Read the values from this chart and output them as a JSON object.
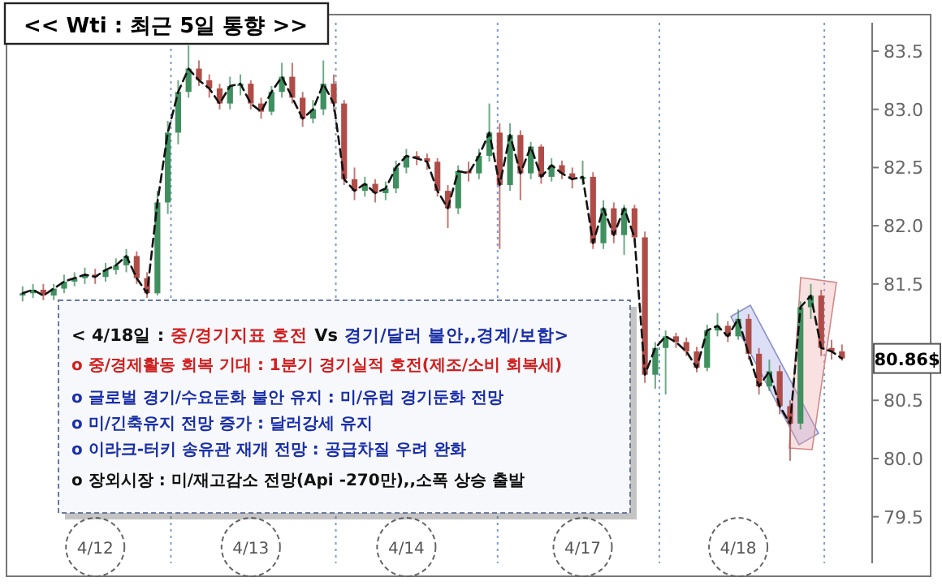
{
  "chart_data": {
    "type": "candlestick",
    "title": "<< Wti : 최근 5일 통향 >>",
    "categories": [
      null,
      null,
      null,
      null,
      null,
      null,
      null,
      "4/12",
      null,
      null,
      null,
      null,
      null,
      null,
      null,
      null,
      null,
      null,
      null,
      null,
      null,
      null,
      "4/13",
      null,
      null,
      null,
      null,
      null,
      null,
      null,
      null,
      null,
      null,
      null,
      null,
      null,
      null,
      "4/14",
      null,
      null,
      null,
      null,
      null,
      null,
      null,
      null,
      null,
      null,
      null,
      null,
      null,
      null,
      null,
      null,
      "4/17",
      null,
      null,
      null,
      null,
      null,
      null,
      null,
      null,
      null,
      null,
      null,
      null,
      null,
      null,
      "4/18",
      null,
      null,
      null,
      null,
      null,
      null,
      null,
      null,
      null,
      null
    ],
    "ohlc": [
      [
        81.4,
        81.48,
        81.35,
        81.42
      ],
      [
        81.42,
        81.5,
        81.38,
        81.45
      ],
      [
        81.45,
        81.5,
        81.36,
        81.4
      ],
      [
        81.4,
        81.5,
        81.36,
        81.46
      ],
      [
        81.46,
        81.58,
        81.42,
        81.52
      ],
      [
        81.52,
        81.6,
        81.48,
        81.55
      ],
      [
        81.55,
        81.64,
        81.5,
        81.58
      ],
      [
        81.58,
        81.63,
        81.5,
        81.56
      ],
      [
        81.56,
        81.68,
        81.52,
        81.62
      ],
      [
        81.62,
        81.72,
        81.58,
        81.66
      ],
      [
        81.66,
        81.8,
        81.6,
        81.74
      ],
      [
        81.74,
        81.78,
        81.5,
        81.55
      ],
      [
        81.55,
        81.6,
        81.38,
        81.42
      ],
      [
        81.42,
        82.3,
        81.4,
        82.2
      ],
      [
        82.2,
        82.9,
        82.1,
        82.8
      ],
      [
        82.8,
        83.25,
        82.7,
        83.15
      ],
      [
        83.15,
        83.55,
        83.1,
        83.35
      ],
      [
        83.35,
        83.42,
        83.2,
        83.25
      ],
      [
        83.25,
        83.3,
        83.1,
        83.18
      ],
      [
        83.18,
        83.22,
        83.0,
        83.05
      ],
      [
        83.05,
        83.28,
        83.0,
        83.2
      ],
      [
        83.2,
        83.3,
        83.12,
        83.22
      ],
      [
        83.22,
        83.25,
        83.0,
        83.05
      ],
      [
        83.05,
        83.1,
        82.92,
        82.98
      ],
      [
        82.98,
        83.2,
        82.95,
        83.15
      ],
      [
        83.15,
        83.4,
        83.1,
        83.28
      ],
      [
        83.28,
        83.4,
        83.05,
        83.1
      ],
      [
        83.1,
        83.15,
        82.85,
        82.92
      ],
      [
        82.92,
        83.08,
        82.88,
        83.0
      ],
      [
        83.0,
        83.42,
        82.95,
        83.22
      ],
      [
        83.22,
        83.3,
        82.98,
        83.05
      ],
      [
        83.05,
        83.08,
        82.35,
        82.4
      ],
      [
        82.4,
        82.5,
        82.22,
        82.3
      ],
      [
        82.3,
        82.42,
        82.25,
        82.36
      ],
      [
        82.36,
        82.4,
        82.2,
        82.28
      ],
      [
        82.28,
        82.38,
        82.22,
        82.32
      ],
      [
        82.32,
        82.56,
        82.28,
        82.5
      ],
      [
        82.5,
        82.66,
        82.45,
        82.6
      ],
      [
        82.6,
        82.64,
        82.52,
        82.58
      ],
      [
        82.58,
        82.62,
        82.48,
        82.55
      ],
      [
        82.55,
        82.58,
        82.25,
        82.3
      ],
      [
        82.3,
        82.35,
        81.98,
        82.15
      ],
      [
        82.15,
        82.52,
        82.1,
        82.47
      ],
      [
        82.47,
        82.55,
        82.38,
        82.45
      ],
      [
        82.45,
        82.66,
        82.4,
        82.6
      ],
      [
        82.6,
        83.05,
        82.55,
        82.8
      ],
      [
        82.8,
        82.88,
        81.8,
        82.35
      ],
      [
        82.35,
        82.88,
        82.3,
        82.78
      ],
      [
        82.78,
        82.82,
        82.22,
        82.45
      ],
      [
        82.45,
        82.72,
        82.4,
        82.68
      ],
      [
        82.68,
        82.7,
        82.36,
        82.42
      ],
      [
        82.42,
        82.58,
        82.38,
        82.52
      ],
      [
        82.52,
        82.56,
        82.4,
        82.45
      ],
      [
        82.45,
        82.5,
        82.32,
        82.4
      ],
      [
        82.4,
        82.56,
        82.35,
        82.42
      ],
      [
        82.42,
        82.46,
        81.8,
        81.85
      ],
      [
        81.85,
        82.22,
        81.8,
        82.15
      ],
      [
        82.15,
        82.2,
        81.85,
        81.92
      ],
      [
        81.92,
        82.18,
        81.75,
        82.15
      ],
      [
        82.15,
        82.18,
        81.85,
        81.9
      ],
      [
        81.9,
        81.95,
        80.65,
        80.72
      ],
      [
        80.72,
        81.0,
        80.6,
        80.95
      ],
      [
        80.95,
        81.1,
        80.55,
        81.05
      ],
      [
        81.05,
        81.08,
        80.95,
        81.0
      ],
      [
        81.0,
        81.04,
        80.88,
        80.92
      ],
      [
        80.92,
        80.96,
        80.74,
        80.78
      ],
      [
        80.78,
        81.15,
        80.75,
        81.1
      ],
      [
        81.1,
        81.25,
        81.05,
        81.14
      ],
      [
        81.14,
        81.18,
        81.0,
        81.05
      ],
      [
        81.05,
        81.28,
        81.02,
        81.2
      ],
      [
        81.2,
        81.24,
        80.85,
        80.9
      ],
      [
        80.9,
        80.95,
        80.55,
        80.62
      ],
      [
        80.62,
        80.85,
        80.58,
        80.75
      ],
      [
        80.75,
        80.8,
        80.38,
        80.45
      ],
      [
        80.45,
        80.5,
        79.98,
        80.3
      ],
      [
        80.3,
        81.35,
        80.25,
        81.3
      ],
      [
        81.3,
        81.5,
        81.2,
        81.4
      ],
      [
        81.4,
        81.45,
        80.88,
        80.95
      ],
      [
        80.95,
        81.02,
        80.85,
        80.92
      ],
      [
        80.92,
        80.98,
        80.84,
        80.86
      ]
    ],
    "series": [
      {
        "type": "line",
        "color": "#111111",
        "line_style": "dashed",
        "values": [
          81.42,
          81.45,
          81.4,
          81.46,
          81.52,
          81.55,
          81.58,
          81.56,
          81.62,
          81.66,
          81.74,
          81.55,
          81.42,
          82.2,
          82.8,
          83.15,
          83.35,
          83.25,
          83.18,
          83.05,
          83.2,
          83.22,
          83.05,
          82.98,
          83.15,
          83.28,
          83.1,
          82.92,
          83.0,
          83.22,
          83.05,
          82.4,
          82.3,
          82.36,
          82.28,
          82.32,
          82.5,
          82.6,
          82.58,
          82.55,
          82.3,
          82.15,
          82.47,
          82.45,
          82.6,
          82.8,
          82.35,
          82.78,
          82.45,
          82.68,
          82.42,
          82.52,
          82.45,
          82.4,
          82.42,
          81.85,
          82.15,
          81.92,
          82.15,
          81.9,
          80.72,
          80.95,
          81.05,
          81.0,
          80.92,
          80.78,
          81.1,
          81.14,
          81.05,
          81.2,
          80.9,
          80.62,
          80.75,
          80.45,
          80.3,
          81.3,
          81.4,
          80.95,
          80.92,
          80.86
        ]
      }
    ],
    "ylim": [
      79.1,
      83.8
    ],
    "yticks": [
      {
        "value": 79.5,
        "label": "79.5"
      },
      {
        "value": 80,
        "label": "80.0"
      },
      {
        "value": 80.5,
        "label": "80.5"
      },
      {
        "value": 81.5,
        "label": "81.5"
      },
      {
        "value": 82,
        "label": "82.0"
      },
      {
        "value": 82.5,
        "label": "82.5"
      },
      {
        "value": 83,
        "label": "83.0"
      },
      {
        "value": 83.5,
        "label": "83.5"
      }
    ],
    "grid": false,
    "annotations": [
      "< 4/18일 :",
      "중/경기지표 호전",
      "Vs",
      "경기/달러 불안,,경계/보합>",
      "o 중/경제활동 회복 기대 : 1분기 경기실적 호전(제조/소비 회복세)",
      "o 글로벌 경기/수요둔화 불안 유지 : 미/유럽 경기둔화 전망",
      "o 미/긴축유지 전망 증가 : 달러강세 유지",
      "o 이라크-터키 송유관 재개 전망 : 공급차질 우려 완화",
      "o 장외시장 : 미/재고감소 전망(Api -270만),,소폭 상승 출발",
      "80.86$"
    ]
  }
}
